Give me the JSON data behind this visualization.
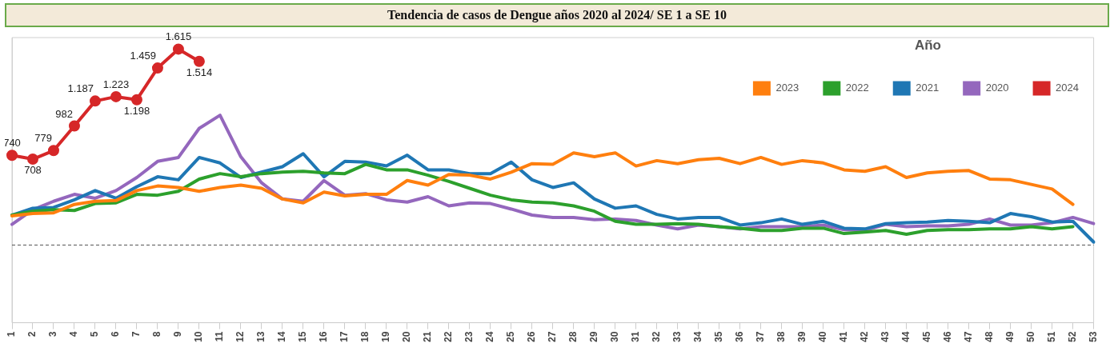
{
  "chart_data": {
    "type": "line",
    "title": "Tendencia de casos de Dengue años 2020 al 2024/ SE 1 a SE 10",
    "categories": [
      "1",
      "2",
      "3",
      "4",
      "5",
      "6",
      "7",
      "8",
      "9",
      "10",
      "11",
      "12",
      "13",
      "14",
      "15",
      "16",
      "17",
      "18",
      "19",
      "20",
      "21",
      "22",
      "23",
      "24",
      "25",
      "26",
      "27",
      "28",
      "29",
      "30",
      "31",
      "32",
      "33",
      "34",
      "35",
      "36",
      "37",
      "38",
      "39",
      "40",
      "41",
      "42",
      "43",
      "44",
      "45",
      "46",
      "47",
      "48",
      "49",
      "50",
      "51",
      "52",
      "53"
    ],
    "legend_title": "Año",
    "legend": "top right",
    "grid": false,
    "tick_labels": "x",
    "ylim": [
      -640,
      1710
    ],
    "line_style": "solid",
    "ref_lines": [
      {
        "axis": "y",
        "value": 0,
        "color": "#555555",
        "line_style": "dashed"
      }
    ],
    "series": [
      {
        "name": "2023",
        "color": "#ff7f0e",
        "marker": "none",
        "values": [
          241,
          260,
          266,
          335,
          361,
          367,
          449,
          487,
          475,
          443,
          475,
          494,
          468,
          380,
          348,
          437,
          405,
          418,
          418,
          532,
          494,
          582,
          576,
          544,
          601,
          671,
          665,
          760,
          728,
          760,
          652,
          696,
          671,
          703,
          715,
          671,
          722,
          665,
          696,
          677,
          620,
          608,
          646,
          557,
          595,
          608,
          614,
          544,
          538,
          500,
          462,
          335,
          null
        ]
      },
      {
        "name": "2022",
        "color": "#2ca02c",
        "marker": "none",
        "values": [
          247,
          279,
          291,
          285,
          342,
          348,
          418,
          411,
          443,
          544,
          589,
          563,
          589,
          601,
          608,
          595,
          589,
          665,
          620,
          620,
          576,
          525,
          468,
          411,
          373,
          354,
          348,
          323,
          279,
          196,
          171,
          171,
          177,
          171,
          152,
          139,
          120,
          120,
          139,
          139,
          95,
          108,
          120,
          89,
          120,
          127,
          127,
          133,
          133,
          152,
          133,
          152,
          null
        ]
      },
      {
        "name": "2021",
        "color": "#1f77b4",
        "marker": "none",
        "values": [
          247,
          304,
          310,
          373,
          449,
          386,
          481,
          563,
          538,
          722,
          677,
          557,
          601,
          646,
          753,
          563,
          690,
          684,
          652,
          741,
          620,
          620,
          589,
          589,
          684,
          538,
          475,
          513,
          380,
          304,
          323,
          253,
          215,
          228,
          228,
          165,
          184,
          215,
          171,
          196,
          139,
          133,
          177,
          184,
          190,
          203,
          196,
          184,
          260,
          234,
          190,
          196,
          25
        ]
      },
      {
        "name": "2020",
        "color": "#9467bd",
        "marker": "none",
        "values": [
          171,
          291,
          361,
          418,
          386,
          449,
          557,
          690,
          722,
          962,
          1070,
          728,
          513,
          380,
          361,
          532,
          411,
          424,
          373,
          354,
          399,
          323,
          348,
          342,
          297,
          247,
          228,
          228,
          209,
          215,
          203,
          165,
          133,
          165,
          152,
          133,
          152,
          152,
          152,
          165,
          127,
          120,
          171,
          152,
          158,
          158,
          171,
          215,
          165,
          165,
          184,
          228,
          177
        ]
      },
      {
        "name": "2024",
        "color": "#d62728",
        "marker": "circle",
        "values": [
          740,
          708,
          779,
          982,
          1187,
          1223,
          1198,
          1459,
          1615,
          1514,
          null,
          null,
          null,
          null,
          null,
          null,
          null,
          null,
          null,
          null,
          null,
          null,
          null,
          null,
          null,
          null,
          null,
          null,
          null,
          null,
          null,
          null,
          null,
          null,
          null,
          null,
          null,
          null,
          null,
          null,
          null,
          null,
          null,
          null,
          null,
          null,
          null,
          null,
          null,
          null,
          null,
          null,
          null
        ],
        "value_labels": [
          "740",
          "708",
          "779",
          "982",
          "1.187",
          "1.223",
          "1.198",
          "1.459",
          "1.615",
          "1.514",
          null,
          null,
          null,
          null,
          null,
          null,
          null,
          null,
          null,
          null,
          null,
          null,
          null,
          null,
          null,
          null,
          null,
          null,
          null,
          null,
          null,
          null,
          null,
          null,
          null,
          null,
          null,
          null,
          null,
          null,
          null,
          null,
          null,
          null,
          null,
          null,
          null,
          null,
          null,
          null,
          null,
          null,
          null
        ]
      }
    ]
  }
}
